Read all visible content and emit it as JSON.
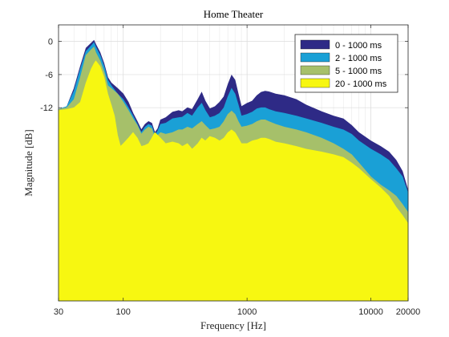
{
  "chart_data": {
    "type": "area",
    "title": "Home Theater",
    "xlabel": "Frequency [Hz]",
    "ylabel": "Magnitude [dB]",
    "x_scale": "log",
    "xlim": [
      30,
      20000
    ],
    "ylim": [
      -47,
      3
    ],
    "x_ticks": [
      {
        "value": 30,
        "label": "30"
      },
      {
        "value": 100,
        "label": "100"
      },
      {
        "value": 1000,
        "label": "1000"
      },
      {
        "value": 10000,
        "label": "10000"
      },
      {
        "value": 20000,
        "label": "20000"
      }
    ],
    "y_ticks": [
      {
        "value": 0,
        "label": "0"
      },
      {
        "value": -6,
        "label": "-6"
      },
      {
        "value": -12,
        "label": "-12"
      }
    ],
    "grid": true,
    "legend_position": "top-right",
    "series": [
      {
        "name": "0 - 1000 ms",
        "color": "#2e2a86",
        "points": [
          [
            30,
            -12.3
          ],
          [
            35,
            -11.8
          ],
          [
            40,
            -8.5
          ],
          [
            45,
            -4.5
          ],
          [
            50,
            -1.2
          ],
          [
            55,
            -0.3
          ],
          [
            58,
            0.2
          ],
          [
            60,
            -0.5
          ],
          [
            65,
            -2
          ],
          [
            70,
            -4
          ],
          [
            75,
            -6.5
          ],
          [
            80,
            -7.5
          ],
          [
            90,
            -8.5
          ],
          [
            100,
            -9.5
          ],
          [
            110,
            -11
          ],
          [
            120,
            -13
          ],
          [
            130,
            -14.5
          ],
          [
            140,
            -16
          ],
          [
            150,
            -15
          ],
          [
            160,
            -14.5
          ],
          [
            170,
            -14.8
          ],
          [
            180,
            -16.5
          ],
          [
            190,
            -15.8
          ],
          [
            200,
            -14.2
          ],
          [
            220,
            -13.8
          ],
          [
            250,
            -12.8
          ],
          [
            280,
            -12.5
          ],
          [
            300,
            -12.7
          ],
          [
            330,
            -12
          ],
          [
            360,
            -12.3
          ],
          [
            400,
            -10.5
          ],
          [
            430,
            -9.2
          ],
          [
            460,
            -10.8
          ],
          [
            500,
            -12.2
          ],
          [
            550,
            -11.8
          ],
          [
            600,
            -11
          ],
          [
            650,
            -10
          ],
          [
            700,
            -7.8
          ],
          [
            750,
            -6.1
          ],
          [
            800,
            -7
          ],
          [
            850,
            -9.5
          ],
          [
            900,
            -11.8
          ],
          [
            1000,
            -11.2
          ],
          [
            1100,
            -10.8
          ],
          [
            1200,
            -9.8
          ],
          [
            1300,
            -9.2
          ],
          [
            1400,
            -9
          ],
          [
            1500,
            -9.1
          ],
          [
            1700,
            -9.5
          ],
          [
            2000,
            -9.8
          ],
          [
            2500,
            -10.5
          ],
          [
            3000,
            -11.5
          ],
          [
            4000,
            -12.7
          ],
          [
            5000,
            -13.5
          ],
          [
            6000,
            -14
          ],
          [
            7000,
            -15.2
          ],
          [
            8000,
            -16.5
          ],
          [
            10000,
            -18
          ],
          [
            12000,
            -19
          ],
          [
            14000,
            -20
          ],
          [
            16000,
            -21.5
          ],
          [
            18000,
            -23.5
          ],
          [
            20000,
            -27
          ]
        ]
      },
      {
        "name": "2 - 1000 ms",
        "color": "#1aa0d6",
        "points": [
          [
            30,
            -12.3
          ],
          [
            35,
            -11.8
          ],
          [
            40,
            -9
          ],
          [
            45,
            -5
          ],
          [
            50,
            -1.8
          ],
          [
            55,
            -0.8
          ],
          [
            58,
            -0.2
          ],
          [
            60,
            -1
          ],
          [
            65,
            -2.5
          ],
          [
            70,
            -4.5
          ],
          [
            75,
            -7
          ],
          [
            80,
            -8
          ],
          [
            90,
            -9.5
          ],
          [
            100,
            -10.5
          ],
          [
            110,
            -12
          ],
          [
            120,
            -13.5
          ],
          [
            130,
            -15
          ],
          [
            140,
            -16.5
          ],
          [
            150,
            -15.5
          ],
          [
            160,
            -15
          ],
          [
            170,
            -15.3
          ],
          [
            180,
            -17
          ],
          [
            190,
            -16.2
          ],
          [
            200,
            -15
          ],
          [
            220,
            -14.8
          ],
          [
            250,
            -14
          ],
          [
            280,
            -13.8
          ],
          [
            300,
            -13.7
          ],
          [
            330,
            -13
          ],
          [
            360,
            -13.5
          ],
          [
            400,
            -12
          ],
          [
            430,
            -11.2
          ],
          [
            460,
            -12.5
          ],
          [
            500,
            -13.8
          ],
          [
            550,
            -13.5
          ],
          [
            600,
            -13
          ],
          [
            650,
            -12
          ],
          [
            700,
            -10
          ],
          [
            750,
            -8.5
          ],
          [
            800,
            -9.5
          ],
          [
            850,
            -11.5
          ],
          [
            900,
            -13.5
          ],
          [
            1000,
            -13.2
          ],
          [
            1100,
            -12.8
          ],
          [
            1200,
            -12.2
          ],
          [
            1300,
            -12
          ],
          [
            1400,
            -12
          ],
          [
            1500,
            -12.3
          ],
          [
            1700,
            -12.7
          ],
          [
            2000,
            -13
          ],
          [
            2500,
            -13.5
          ],
          [
            3000,
            -14
          ],
          [
            4000,
            -14.8
          ],
          [
            5000,
            -15.5
          ],
          [
            6000,
            -16
          ],
          [
            7000,
            -16.8
          ],
          [
            8000,
            -18
          ],
          [
            10000,
            -19.5
          ],
          [
            12000,
            -20.5
          ],
          [
            14000,
            -21.5
          ],
          [
            16000,
            -23
          ],
          [
            18000,
            -24.5
          ],
          [
            20000,
            -27.5
          ]
        ]
      },
      {
        "name": "5 - 1000 ms",
        "color": "#a6c06a",
        "points": [
          [
            30,
            -12.3
          ],
          [
            35,
            -12
          ],
          [
            40,
            -10.5
          ],
          [
            45,
            -6.5
          ],
          [
            50,
            -2.5
          ],
          [
            55,
            -1.5
          ],
          [
            58,
            -1
          ],
          [
            60,
            -2
          ],
          [
            65,
            -3.5
          ],
          [
            70,
            -5.5
          ],
          [
            75,
            -8
          ],
          [
            80,
            -8.5
          ],
          [
            90,
            -9.5
          ],
          [
            100,
            -11
          ],
          [
            110,
            -12.5
          ],
          [
            120,
            -14
          ],
          [
            130,
            -15.2
          ],
          [
            140,
            -16.8
          ],
          [
            150,
            -16
          ],
          [
            160,
            -15.5
          ],
          [
            170,
            -15.8
          ],
          [
            180,
            -17.5
          ],
          [
            190,
            -17
          ],
          [
            200,
            -16.5
          ],
          [
            220,
            -16.8
          ],
          [
            250,
            -16.5
          ],
          [
            280,
            -16
          ],
          [
            300,
            -16
          ],
          [
            330,
            -15.5
          ],
          [
            360,
            -15.8
          ],
          [
            400,
            -15
          ],
          [
            430,
            -14.5
          ],
          [
            460,
            -15.2
          ],
          [
            500,
            -16
          ],
          [
            550,
            -15.8
          ],
          [
            600,
            -15.5
          ],
          [
            650,
            -14.5
          ],
          [
            700,
            -13.2
          ],
          [
            750,
            -12.6
          ],
          [
            800,
            -13.2
          ],
          [
            850,
            -14.5
          ],
          [
            900,
            -15.5
          ],
          [
            1000,
            -15.3
          ],
          [
            1100,
            -15
          ],
          [
            1200,
            -14.5
          ],
          [
            1300,
            -14.2
          ],
          [
            1400,
            -14.2
          ],
          [
            1500,
            -14.5
          ],
          [
            1700,
            -15
          ],
          [
            2000,
            -15.5
          ],
          [
            2500,
            -16
          ],
          [
            3000,
            -16.5
          ],
          [
            4000,
            -17.5
          ],
          [
            5000,
            -18.5
          ],
          [
            6000,
            -19.5
          ],
          [
            7000,
            -20.5
          ],
          [
            8000,
            -22
          ],
          [
            10000,
            -24.5
          ],
          [
            12000,
            -26
          ],
          [
            14000,
            -27
          ],
          [
            16000,
            -28
          ],
          [
            18000,
            -29.5
          ],
          [
            20000,
            -31
          ]
        ]
      },
      {
        "name": "20 - 1000 ms",
        "color": "#f7f711",
        "points": [
          [
            30,
            -12.5
          ],
          [
            35,
            -12.3
          ],
          [
            40,
            -12
          ],
          [
            45,
            -11
          ],
          [
            50,
            -7.5
          ],
          [
            55,
            -5
          ],
          [
            58,
            -4
          ],
          [
            60,
            -3.5
          ],
          [
            65,
            -4.5
          ],
          [
            70,
            -6.5
          ],
          [
            75,
            -9.5
          ],
          [
            80,
            -11.5
          ],
          [
            85,
            -13.5
          ],
          [
            90,
            -17
          ],
          [
            95,
            -19
          ],
          [
            100,
            -18.5
          ],
          [
            110,
            -17.5
          ],
          [
            120,
            -16.5
          ],
          [
            130,
            -17.5
          ],
          [
            140,
            -19
          ],
          [
            150,
            -18.8
          ],
          [
            160,
            -18.5
          ],
          [
            170,
            -17.5
          ],
          [
            180,
            -16.5
          ],
          [
            190,
            -17
          ],
          [
            200,
            -17.5
          ],
          [
            220,
            -18.5
          ],
          [
            250,
            -18.2
          ],
          [
            280,
            -18.5
          ],
          [
            300,
            -19
          ],
          [
            330,
            -18.5
          ],
          [
            360,
            -19.5
          ],
          [
            400,
            -18.5
          ],
          [
            430,
            -17.5
          ],
          [
            460,
            -18
          ],
          [
            500,
            -17.2
          ],
          [
            550,
            -17.5
          ],
          [
            600,
            -18
          ],
          [
            650,
            -17.5
          ],
          [
            700,
            -16.5
          ],
          [
            750,
            -16
          ],
          [
            800,
            -16.5
          ],
          [
            850,
            -17.5
          ],
          [
            900,
            -18.5
          ],
          [
            1000,
            -18.5
          ],
          [
            1100,
            -18
          ],
          [
            1200,
            -17.8
          ],
          [
            1300,
            -17.5
          ],
          [
            1400,
            -17.5
          ],
          [
            1500,
            -17.7
          ],
          [
            1700,
            -18.2
          ],
          [
            2000,
            -18.5
          ],
          [
            2500,
            -19
          ],
          [
            3000,
            -19.5
          ],
          [
            4000,
            -20
          ],
          [
            5000,
            -20.5
          ],
          [
            6000,
            -21
          ],
          [
            7000,
            -22
          ],
          [
            8000,
            -23
          ],
          [
            10000,
            -25
          ],
          [
            12000,
            -26.5
          ],
          [
            14000,
            -28
          ],
          [
            16000,
            -30
          ],
          [
            18000,
            -31.5
          ],
          [
            20000,
            -33
          ]
        ]
      }
    ]
  }
}
